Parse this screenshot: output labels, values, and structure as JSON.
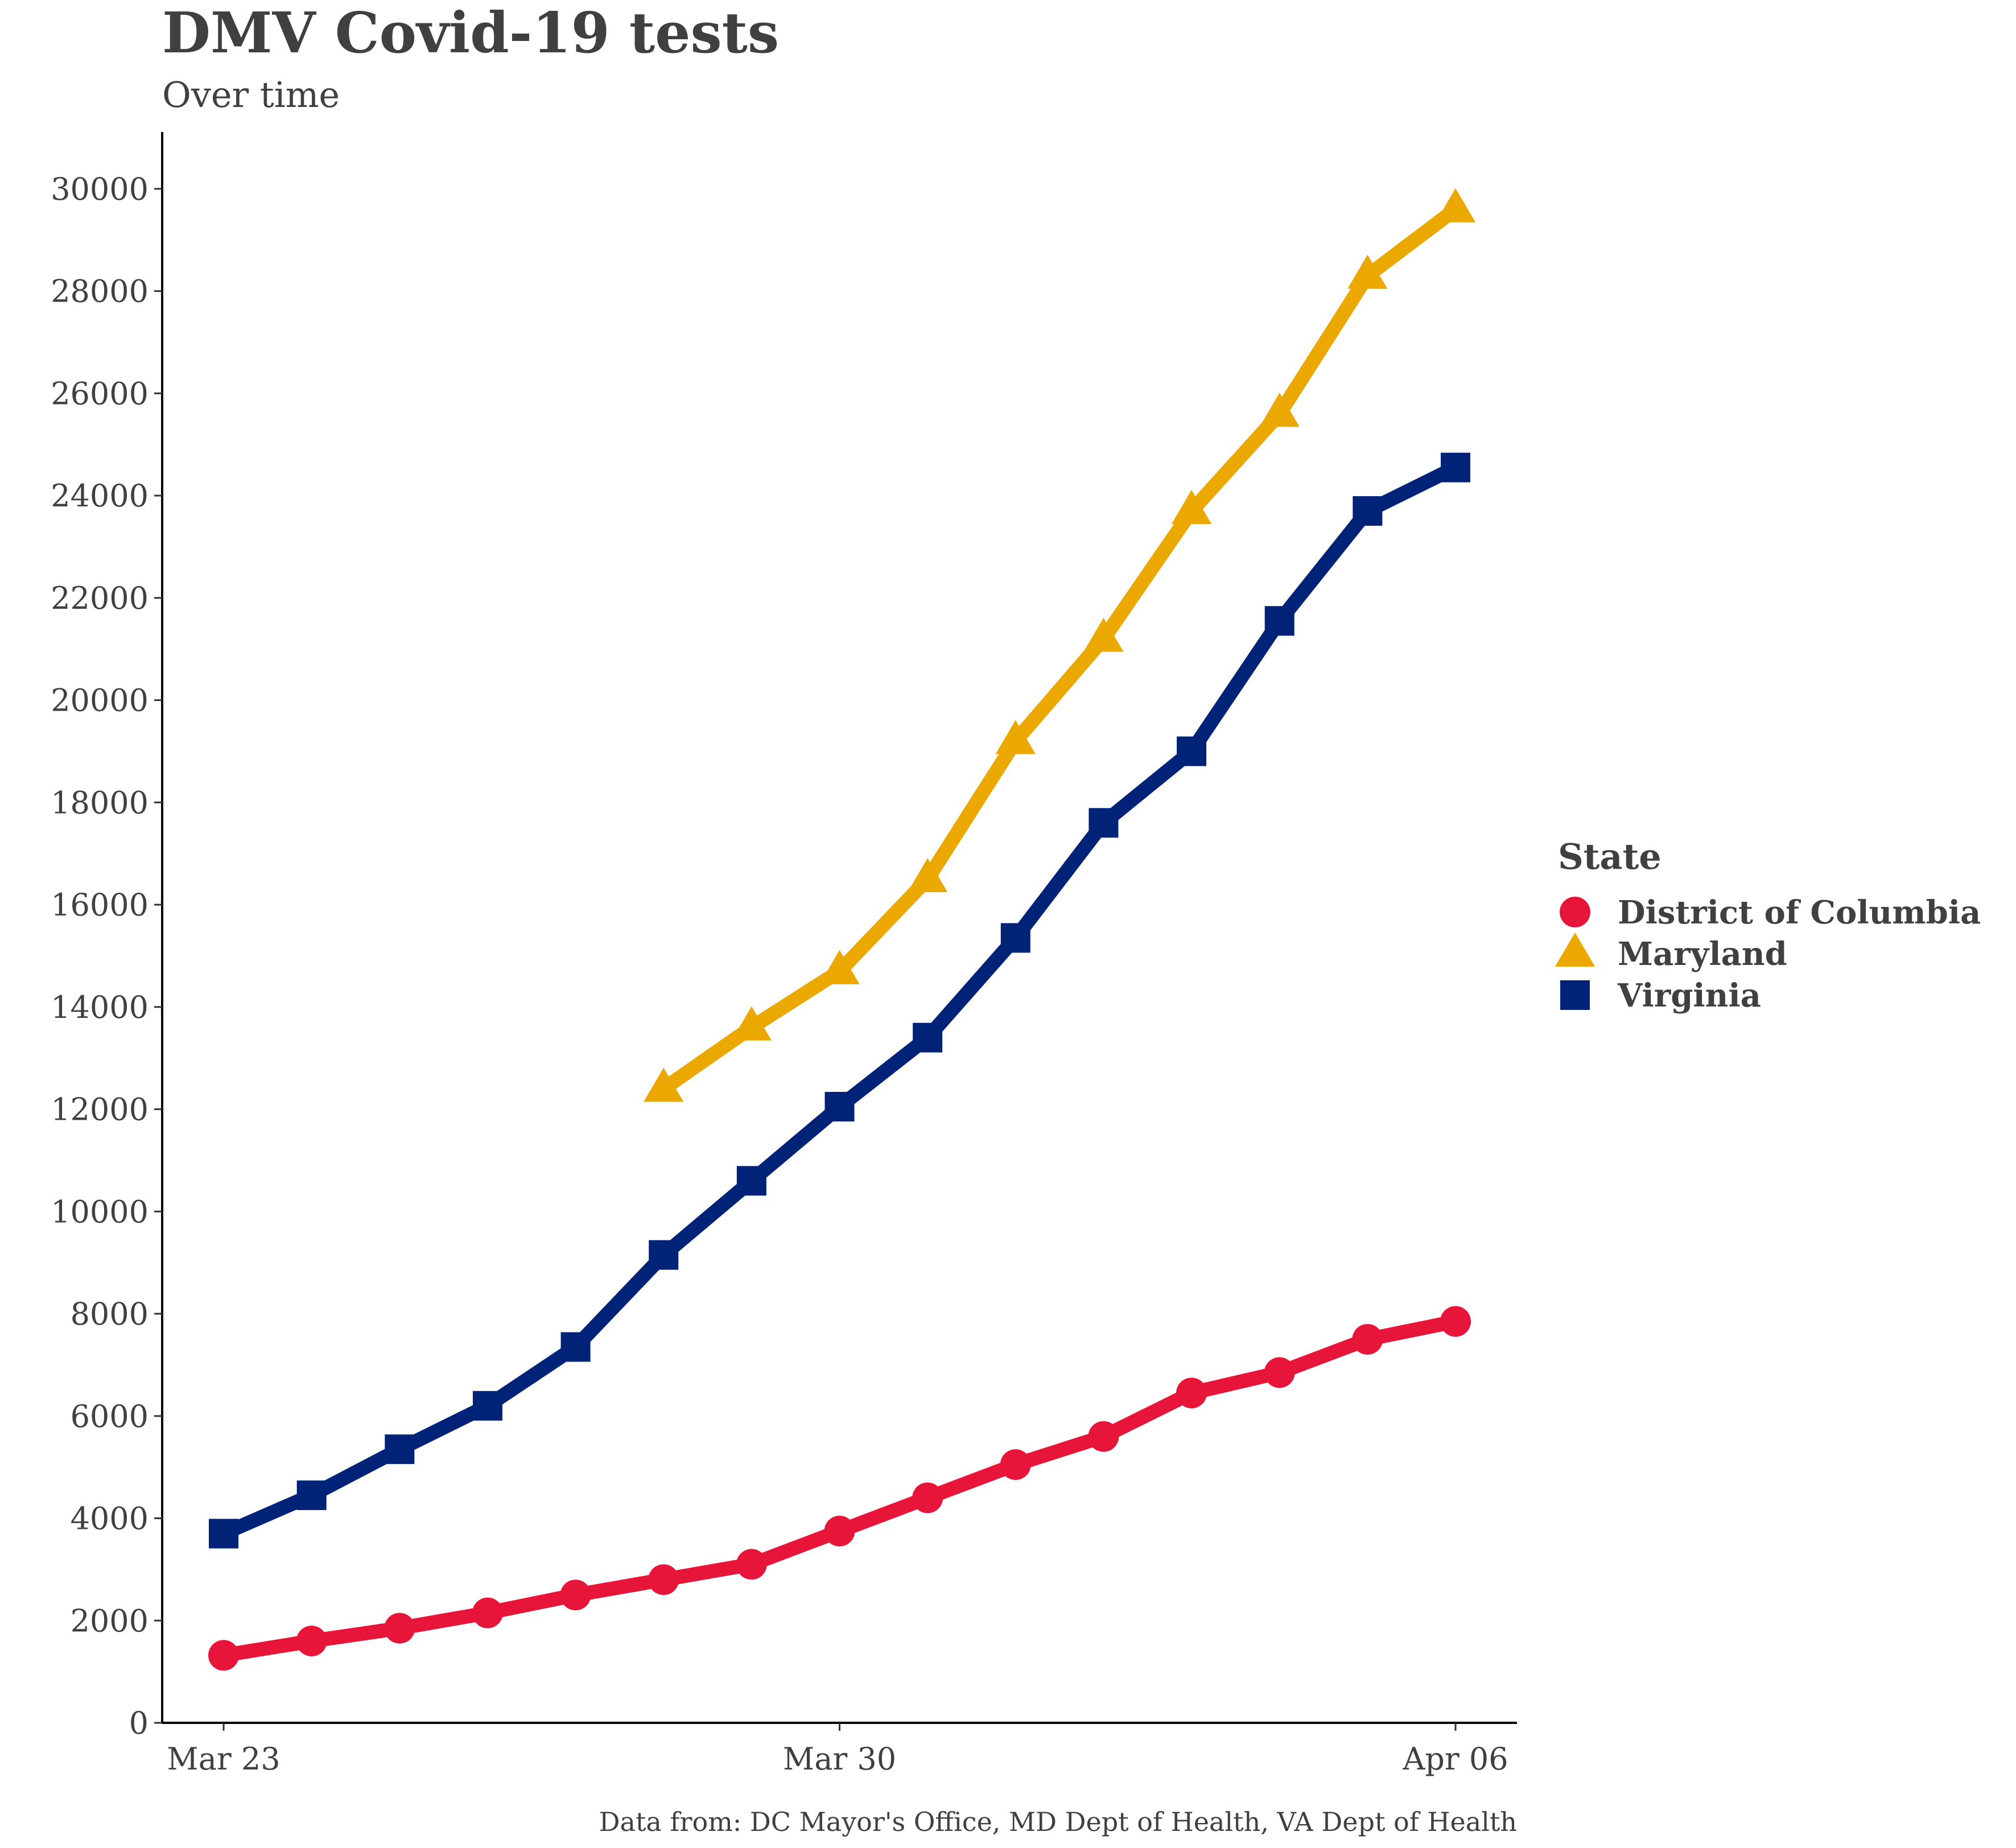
{
  "chart_data": {
    "type": "line",
    "title": "DMV Covid-19 tests",
    "subtitle": "Over time",
    "caption": "Data from: DC Mayor's Office, MD Dept of Health, VA Dept of Health",
    "xlabel": "",
    "ylabel": "",
    "x": [
      "2020-03-23",
      "2020-03-24",
      "2020-03-25",
      "2020-03-26",
      "2020-03-27",
      "2020-03-28",
      "2020-03-29",
      "2020-03-30",
      "2020-03-31",
      "2020-04-01",
      "2020-04-02",
      "2020-04-03",
      "2020-04-04",
      "2020-04-05",
      "2020-04-06"
    ],
    "xlim": [
      "2020-03-23",
      "2020-04-06"
    ],
    "x_ticks": [
      {
        "date": "2020-03-23",
        "label": "Mar 23"
      },
      {
        "date": "2020-03-30",
        "label": "Mar 30"
      },
      {
        "date": "2020-04-06",
        "label": "Apr 06"
      }
    ],
    "ylim": [
      0,
      31000
    ],
    "y_ticks": [
      0,
      2000,
      4000,
      6000,
      8000,
      10000,
      12000,
      14000,
      16000,
      18000,
      20000,
      22000,
      24000,
      26000,
      28000,
      30000
    ],
    "grid": false,
    "legend": {
      "title": "State",
      "position": "right"
    },
    "series": [
      {
        "name": "District of Columbia",
        "color": "#E8153A",
        "marker": "circle",
        "values": [
          1320,
          1600,
          1850,
          2150,
          2500,
          2800,
          3100,
          3750,
          4400,
          5050,
          5600,
          6450,
          6850,
          7500,
          7850
        ]
      },
      {
        "name": "Maryland",
        "color": "#EAA800",
        "marker": "triangle",
        "values": [
          null,
          null,
          null,
          null,
          null,
          12400,
          13600,
          14700,
          16500,
          19200,
          21200,
          23700,
          25600,
          28300,
          29600
        ]
      },
      {
        "name": "Virginia",
        "color": "#002277",
        "marker": "square",
        "values": [
          3700,
          4450,
          5350,
          6200,
          7350,
          9150,
          10600,
          12050,
          13400,
          15350,
          17600,
          19000,
          21550,
          23700,
          24550
        ]
      }
    ]
  }
}
